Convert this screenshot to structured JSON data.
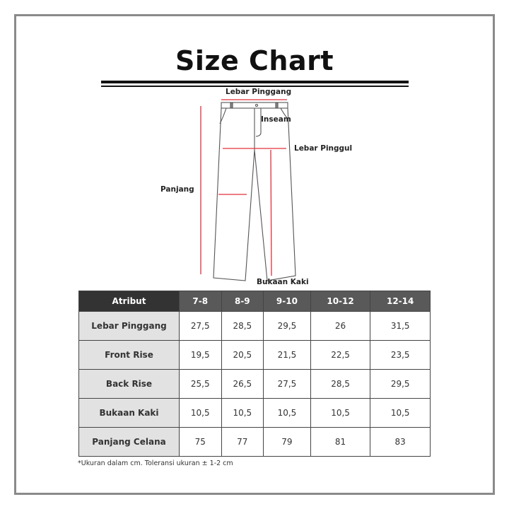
{
  "title": "Size Chart",
  "diagram": {
    "labels": {
      "waist": "Lebar Pinggang",
      "inseam": "Inseam",
      "hip": "Lebar Pinggul",
      "length": "Panjang",
      "leg_opening": "Bukaan Kaki"
    },
    "measure_line_color": "#e0303a"
  },
  "table": {
    "headers": [
      "Atribut",
      "7-8",
      "8-9",
      "9-10",
      "10-12",
      "12-14"
    ],
    "rows": [
      {
        "label": "Lebar Pinggang",
        "values": [
          "27,5",
          "28,5",
          "29,5",
          "26",
          "31,5"
        ]
      },
      {
        "label": "Front Rise",
        "values": [
          "19,5",
          "20,5",
          "21,5",
          "22,5",
          "23,5"
        ]
      },
      {
        "label": "Back Rise",
        "values": [
          "25,5",
          "26,5",
          "27,5",
          "28,5",
          "29,5"
        ]
      },
      {
        "label": "Bukaan Kaki",
        "values": [
          "10,5",
          "10,5",
          "10,5",
          "10,5",
          "10,5"
        ]
      },
      {
        "label": "Panjang Celana",
        "values": [
          "75",
          "77",
          "79",
          "81",
          "83"
        ]
      }
    ]
  },
  "footnote": "*Ukuran dalam cm. Toleransi ukuran ± 1-2 cm"
}
